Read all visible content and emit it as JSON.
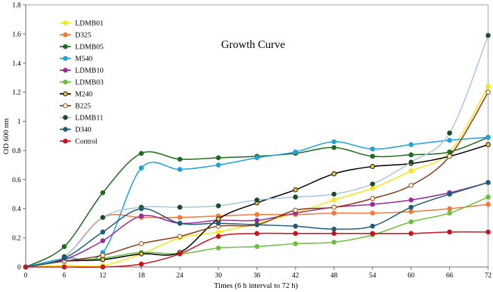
{
  "chart_data": {
    "type": "line",
    "title": "Growth Curve",
    "xlabel": "Times (6 h interval  to 72 h)",
    "ylabel": "OD 600 nm",
    "x": [
      0,
      6,
      12,
      18,
      24,
      30,
      36,
      42,
      48,
      54,
      60,
      66,
      72
    ],
    "x_ticks": [
      "0",
      "6",
      "12",
      "18",
      "24",
      "30",
      "36",
      "42",
      "48",
      "54",
      "60",
      "66",
      "72"
    ],
    "y_ticks": [
      "0",
      "0.2",
      "0.4",
      "0.6",
      "0.8",
      "1",
      "1.2",
      "1.4",
      "1.6",
      "1.8"
    ],
    "xlim": [
      0,
      72
    ],
    "ylim": [
      0,
      1.8
    ],
    "grid": false,
    "legend_position": "top-left",
    "series": [
      {
        "name": "LDMB01",
        "color": "#f5e51b",
        "marker_fill": "#f5e51b",
        "values": [
          0,
          0.01,
          0.01,
          0.09,
          0.2,
          0.24,
          0.3,
          0.37,
          0.46,
          0.54,
          0.66,
          0.79,
          1.24
        ]
      },
      {
        "name": "D325",
        "color": "#ef7a3a",
        "marker_fill": "#ef7a3a",
        "values": [
          0,
          0.07,
          0.34,
          0.34,
          0.34,
          0.35,
          0.36,
          0.36,
          0.37,
          0.37,
          0.38,
          0.4,
          0.43
        ]
      },
      {
        "name": "LDMB05",
        "color": "#1f6b1f",
        "marker_fill": "#1f6b1f",
        "values": [
          0,
          0.14,
          0.51,
          0.78,
          0.74,
          0.75,
          0.76,
          0.78,
          0.82,
          0.76,
          0.77,
          0.79,
          0.89
        ]
      },
      {
        "name": "M540",
        "color": "#1fa3d8",
        "marker_fill": "#1fa3d8",
        "values": [
          0,
          0.06,
          0.1,
          0.68,
          0.67,
          0.7,
          0.75,
          0.79,
          0.86,
          0.81,
          0.84,
          0.87,
          0.89
        ]
      },
      {
        "name": "LDMB10",
        "color": "#9b2c9b",
        "marker_fill": "#9b2c9b",
        "values": [
          0,
          0.05,
          0.18,
          0.35,
          0.3,
          0.32,
          0.32,
          0.37,
          0.41,
          0.43,
          0.46,
          0.51,
          0.58
        ]
      },
      {
        "name": "LDMB03",
        "color": "#6cbf3c",
        "marker_fill": "#6cbf3c",
        "values": [
          0,
          0.04,
          0.06,
          0.1,
          0.09,
          0.13,
          0.14,
          0.16,
          0.17,
          0.22,
          0.31,
          0.37,
          0.48
        ]
      },
      {
        "name": "M240",
        "color": "#000000",
        "marker_fill": "#e8c53a",
        "values": [
          0,
          0.04,
          0.05,
          0.09,
          0.1,
          0.33,
          0.44,
          0.53,
          0.64,
          0.69,
          0.71,
          0.76,
          0.84
        ]
      },
      {
        "name": "B225",
        "color": "#8b3a1a",
        "marker_fill": "#fff3d6",
        "values": [
          0,
          0.04,
          0.08,
          0.16,
          0.21,
          0.28,
          0.29,
          0.39,
          0.41,
          0.47,
          0.56,
          0.76,
          1.2
        ]
      },
      {
        "name": "LDMB11",
        "color": "#a9c6e0",
        "marker_fill": "#1e4a2a",
        "values": [
          0,
          0.07,
          0.34,
          0.41,
          0.41,
          0.42,
          0.46,
          0.48,
          0.5,
          0.57,
          0.72,
          0.92,
          1.59
        ]
      },
      {
        "name": "D340",
        "color": "#1f5c78",
        "marker_fill": "#1f5c78",
        "values": [
          0,
          0.06,
          0.24,
          0.4,
          0.3,
          0.3,
          0.29,
          0.28,
          0.26,
          0.28,
          0.41,
          0.5,
          0.58
        ]
      },
      {
        "name": "Control",
        "color": "#c8141e",
        "marker_fill": "#c8141e",
        "values": [
          0,
          0.0,
          0.0,
          0.02,
          0.09,
          0.21,
          0.23,
          0.23,
          0.23,
          0.23,
          0.23,
          0.24,
          0.24
        ]
      }
    ]
  }
}
